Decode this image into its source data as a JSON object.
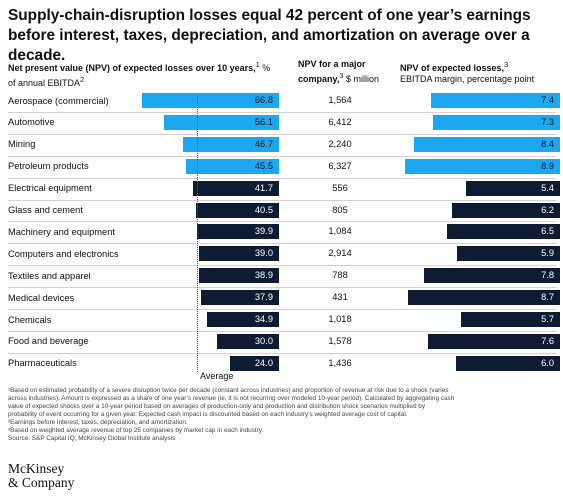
{
  "header": {
    "title": "Supply-chain-disruption losses equal 42 percent of one year’s earnings before interest, taxes, depreciation, and amortization on average over a decade."
  },
  "columns": {
    "npv_bold": "Net present value (NPV) of expected losses over 10 years,",
    "npv_sup": "1",
    "npv_rest": " % of annual EBITDA",
    "npv_sup2": "2",
    "major_bold": "NPV for a major company,",
    "major_sup": "3",
    "major_rest": " $ million",
    "loss_bold": "NPV of expected losses,",
    "loss_sup": "3",
    "loss_rest": "EBITDA margin, percentage point"
  },
  "average_label": "Average",
  "colors": {
    "highlight": "#1ba8f0",
    "dark": "#0d1c33",
    "divider": "#d2d2d2"
  },
  "chart_data": [
    {
      "type": "bar",
      "orientation": "horizontal",
      "categories": [
        "Aerospace (commercial)",
        "Automotive",
        "Mining",
        "Petroleum products",
        "Electrical equipment",
        "Glass and cement",
        "Machinery and equipment",
        "Computers and electronics",
        "Textiles and apparel",
        "Medical devices",
        "Chemicals",
        "Food and beverage",
        "Pharmaceuticals"
      ],
      "values": [
        66.8,
        56.1,
        46.7,
        45.5,
        41.7,
        40.5,
        39.9,
        39.0,
        38.9,
        37.9,
        34.9,
        30.0,
        24.0
      ],
      "value_labels": [
        "66.8",
        "56.1",
        "46.7",
        "45.5",
        "41.7",
        "40.5",
        "39.9",
        "39.0",
        "38.9",
        "37.9",
        "34.9",
        "30.0",
        "24.0"
      ],
      "highlighted": [
        true,
        true,
        true,
        true,
        false,
        false,
        false,
        false,
        false,
        false,
        false,
        false,
        false
      ],
      "average": 42,
      "xlim": [
        0,
        70
      ]
    },
    {
      "type": "table",
      "categories": [
        "Aerospace (commercial)",
        "Automotive",
        "Mining",
        "Petroleum products",
        "Electrical equipment",
        "Glass and cement",
        "Machinery and equipment",
        "Computers and electronics",
        "Textiles and apparel",
        "Medical devices",
        "Chemicals",
        "Food and beverage",
        "Pharmaceuticals"
      ],
      "values": [
        1564,
        6412,
        2240,
        6327,
        556,
        805,
        1084,
        2914,
        788,
        431,
        1018,
        1578,
        1436
      ],
      "value_labels": [
        "1,564",
        "6,412",
        "2,240",
        "6,327",
        "556",
        "805",
        "1,084",
        "2,914",
        "788",
        "431",
        "1,018",
        "1,578",
        "1,436"
      ]
    },
    {
      "type": "bar",
      "orientation": "horizontal",
      "categories": [
        "Aerospace (commercial)",
        "Automotive",
        "Mining",
        "Petroleum products",
        "Electrical equipment",
        "Glass and cement",
        "Machinery and equipment",
        "Computers and electronics",
        "Textiles and apparel",
        "Medical devices",
        "Chemicals",
        "Food and beverage",
        "Pharmaceuticals"
      ],
      "values": [
        7.4,
        7.3,
        8.4,
        8.9,
        5.4,
        6.2,
        6.5,
        5.9,
        7.8,
        8.7,
        5.7,
        7.6,
        6.0
      ],
      "value_labels": [
        "7.4",
        "7.3",
        "8.4",
        "8.9",
        "5.4",
        "6.2",
        "6.5",
        "5.9",
        "7.8",
        "8.7",
        "5.7",
        "7.6",
        "6.0"
      ],
      "highlighted": [
        true,
        true,
        true,
        true,
        false,
        false,
        false,
        false,
        false,
        false,
        false,
        false,
        false
      ],
      "xlim": [
        0,
        9
      ]
    }
  ],
  "footnotes": [
    "¹Based on estimated probability of a severe disruption twice per decade (constant across industries) and proportion of revenue at risk due to a shock (varies",
    "across industries). Amount is expressed as a share of one year’s revenue (ie, it is not recurring over modeled 10-year period). Calculated by aggregating cash",
    "value of expected shocks over a 10-year period based on averages of production-only and production and distribution shock scenarios multiplied by",
    "probability of event occurring for a given year. Expected cash impact is discounted based on each industry’s weighted average cost of capital.",
    "²Earnings before interest, taxes, depreciation, and amortization.",
    "³Based on weighted average revenue of top 25 companies by market cap in each industry.",
    "Source: S&P Capital IQ; McKinsey Global Institute analysis"
  ],
  "logo": {
    "line1": "McKinsey",
    "line2": "& Company"
  }
}
